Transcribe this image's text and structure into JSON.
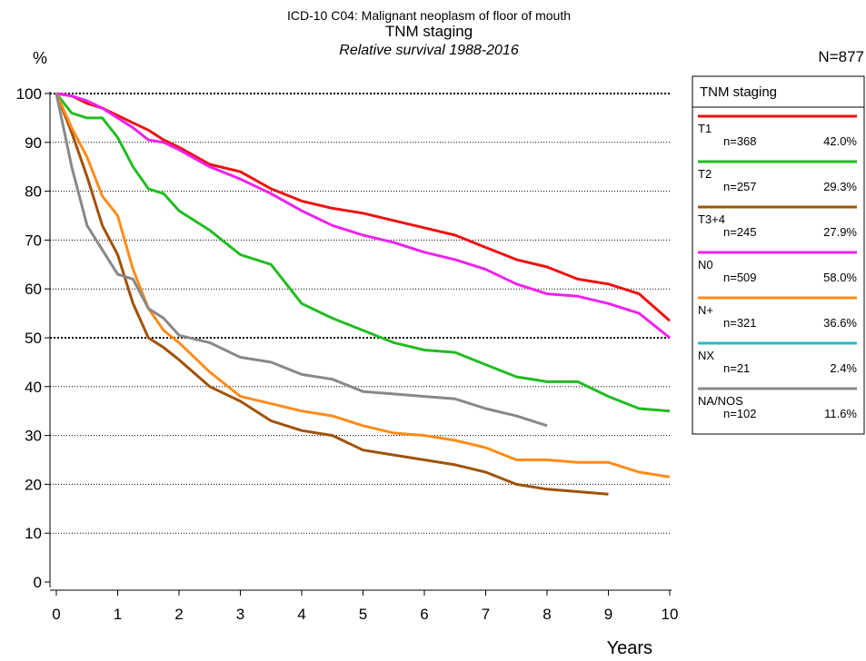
{
  "chart_data": {
    "type": "line",
    "suptitle": "ICD-10 C04: Malignant neoplasm of floor of mouth",
    "title": "TNM staging",
    "subtitle": "Relative survival 1988-2016",
    "y_label": "%",
    "x_label": "Years",
    "total_label": "N=877",
    "legend_title": "TNM staging",
    "grid": true,
    "xlim": [
      0,
      10
    ],
    "ylim": [
      0,
      100
    ],
    "xticks": [
      0,
      1,
      2,
      3,
      4,
      5,
      6,
      7,
      8,
      9,
      10
    ],
    "yticks": [
      0,
      10,
      20,
      30,
      40,
      50,
      60,
      70,
      80,
      90,
      100
    ],
    "x": [
      0,
      0.25,
      0.5,
      0.75,
      1,
      1.25,
      1.5,
      1.75,
      2,
      2.5,
      3,
      3.5,
      4,
      4.5,
      5,
      5.5,
      6,
      6.5,
      7,
      7.5,
      8,
      8.5,
      9,
      9.5,
      10
    ],
    "series": [
      {
        "name": "T1",
        "n_label": "n=368",
        "share_label": "42.0%",
        "color": "#ee1111",
        "values": [
          100,
          99.5,
          98,
          97,
          95.5,
          94,
          92.5,
          90.5,
          89,
          85.5,
          84,
          80.5,
          78,
          76.5,
          75.5,
          74,
          72.5,
          71,
          68.5,
          66,
          64.5,
          62,
          61,
          59,
          53.5
        ]
      },
      {
        "name": "T2",
        "n_label": "n=257",
        "share_label": "29.3%",
        "color": "#22bb22",
        "values": [
          100,
          96,
          95,
          95,
          91,
          85,
          80.5,
          79.5,
          76,
          72,
          67,
          65,
          57,
          54,
          51.5,
          49,
          47.5,
          47,
          44.5,
          42,
          41,
          41,
          38,
          35.5,
          35
        ]
      },
      {
        "name": "T3+4",
        "n_label": "n=245",
        "share_label": "27.9%",
        "color": "#a0520a",
        "values": [
          100,
          92,
          83,
          73,
          67,
          57,
          50,
          48,
          45.5,
          40,
          37,
          33,
          31,
          30,
          27,
          26,
          25,
          24,
          22.5,
          20,
          19,
          18.5,
          18,
          null,
          null
        ]
      },
      {
        "name": "N0",
        "n_label": "n=509",
        "share_label": "58.0%",
        "color": "#ee22ee",
        "values": [
          100,
          99.5,
          98.5,
          97,
          95,
          93,
          90.5,
          90,
          88.5,
          85,
          82.5,
          79.5,
          76,
          73,
          71,
          69.5,
          67.5,
          66,
          64,
          61,
          59,
          58.5,
          57,
          55,
          50
        ]
      },
      {
        "name": "N+",
        "n_label": "n=321",
        "share_label": "36.6%",
        "color": "#ff8c1a",
        "values": [
          100,
          93,
          87,
          79,
          75,
          64,
          56,
          51.5,
          49,
          43,
          38,
          36.5,
          35,
          34,
          32,
          30.5,
          30,
          29,
          27.5,
          25,
          25,
          24.5,
          24.5,
          22.5,
          21.5
        ]
      },
      {
        "name": "NX",
        "n_label": "n=21",
        "share_label": "2.4%",
        "color": "#22bbcc",
        "values": [
          null,
          null,
          null,
          null,
          null,
          null,
          null,
          null,
          null,
          null,
          null,
          null,
          null,
          null,
          null,
          null,
          null,
          null,
          null,
          null,
          null,
          null,
          null,
          null,
          null
        ]
      },
      {
        "name": "NA/NOS",
        "n_label": "n=102",
        "share_label": "11.6%",
        "color": "#888888",
        "values": [
          100,
          85,
          73,
          68,
          63,
          62,
          56,
          54,
          50.5,
          49,
          46,
          45,
          42.5,
          41.5,
          39,
          38.5,
          38,
          37.5,
          35.5,
          34,
          32,
          null,
          null,
          null,
          null
        ]
      }
    ]
  }
}
